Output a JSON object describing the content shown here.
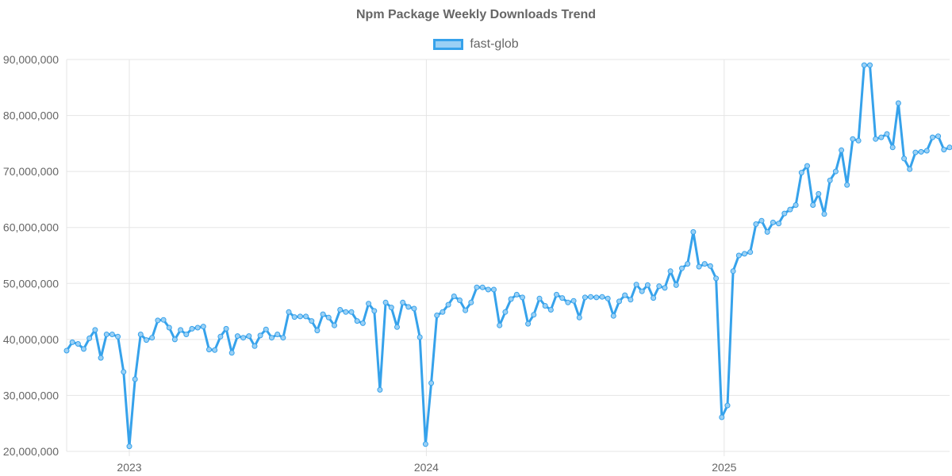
{
  "chart_data": {
    "type": "line",
    "title": "Npm Package Weekly Downloads Trend",
    "xlabel": "",
    "ylabel": "",
    "ylim": [
      20000000,
      90000000
    ],
    "y_ticks": [
      "20,000,000",
      "30,000,000",
      "40,000,000",
      "50,000,000",
      "60,000,000",
      "70,000,000",
      "80,000,000",
      "90,000,000"
    ],
    "x_tick_labels": [
      "2023",
      "2024",
      "2025"
    ],
    "x_range": [
      "2022-10-16",
      "2025-10-05"
    ],
    "grid": true,
    "legend_position": "top-center",
    "series_color": "#36A2EB",
    "series_fill": "#9AD0F5",
    "series": [
      {
        "name": "fast-glob",
        "x": [
          "2022-10-16",
          "2022-10-23",
          "2022-10-30",
          "2022-11-06",
          "2022-11-13",
          "2022-11-20",
          "2022-11-27",
          "2022-12-04",
          "2022-12-11",
          "2022-12-18",
          "2022-12-25",
          "2023-01-01",
          "2023-01-08",
          "2023-01-15",
          "2023-01-22",
          "2023-01-29",
          "2023-02-05",
          "2023-02-12",
          "2023-02-19",
          "2023-02-26",
          "2023-03-05",
          "2023-03-12",
          "2023-03-19",
          "2023-03-26",
          "2023-04-02",
          "2023-04-09",
          "2023-04-16",
          "2023-04-23",
          "2023-04-30",
          "2023-05-07",
          "2023-05-14",
          "2023-05-21",
          "2023-05-28",
          "2023-06-04",
          "2023-06-11",
          "2023-06-18",
          "2023-06-25",
          "2023-07-02",
          "2023-07-09",
          "2023-07-16",
          "2023-07-23",
          "2023-07-30",
          "2023-08-06",
          "2023-08-13",
          "2023-08-20",
          "2023-08-27",
          "2023-09-03",
          "2023-09-10",
          "2023-09-17",
          "2023-09-24",
          "2023-10-01",
          "2023-10-08",
          "2023-10-15",
          "2023-10-22",
          "2023-10-29",
          "2023-11-05",
          "2023-11-12",
          "2023-11-19",
          "2023-11-26",
          "2023-12-03",
          "2023-12-10",
          "2023-12-17",
          "2023-12-24",
          "2023-12-31",
          "2024-01-07",
          "2024-01-14",
          "2024-01-21",
          "2024-01-28",
          "2024-02-04",
          "2024-02-11",
          "2024-02-18",
          "2024-02-25",
          "2024-03-03",
          "2024-03-10",
          "2024-03-17",
          "2024-03-24",
          "2024-03-31",
          "2024-04-07",
          "2024-04-14",
          "2024-04-21",
          "2024-04-28",
          "2024-05-05",
          "2024-05-12",
          "2024-05-19",
          "2024-05-26",
          "2024-06-02",
          "2024-06-09",
          "2024-06-16",
          "2024-06-23",
          "2024-06-30",
          "2024-07-07",
          "2024-07-14",
          "2024-07-21",
          "2024-07-28",
          "2024-08-04",
          "2024-08-11",
          "2024-08-18",
          "2024-08-25",
          "2024-09-01",
          "2024-09-08",
          "2024-09-15",
          "2024-09-22",
          "2024-09-29",
          "2024-10-06",
          "2024-10-13",
          "2024-10-20",
          "2024-10-27",
          "2024-11-03",
          "2024-11-10",
          "2024-11-17",
          "2024-11-24",
          "2024-12-01",
          "2024-12-08",
          "2024-12-15",
          "2024-12-22",
          "2024-12-29",
          "2025-01-05",
          "2025-01-12",
          "2025-01-19",
          "2025-01-26",
          "2025-02-02",
          "2025-02-09",
          "2025-02-16",
          "2025-02-23",
          "2025-03-02",
          "2025-03-09",
          "2025-03-16",
          "2025-03-23",
          "2025-03-30",
          "2025-04-06",
          "2025-04-13",
          "2025-04-20",
          "2025-04-27",
          "2025-05-04",
          "2025-05-11",
          "2025-05-18",
          "2025-05-25",
          "2025-06-01",
          "2025-06-08",
          "2025-06-15",
          "2025-06-22",
          "2025-06-29",
          "2025-07-06",
          "2025-07-13",
          "2025-07-20",
          "2025-07-27",
          "2025-08-03",
          "2025-08-10",
          "2025-08-17",
          "2025-08-24",
          "2025-08-31",
          "2025-09-07",
          "2025-09-14",
          "2025-09-21",
          "2025-09-28",
          "2025-10-05"
        ],
        "values": [
          38000000,
          39500000,
          39200000,
          38300000,
          40200000,
          41700000,
          36700000,
          40900000,
          40900000,
          40500000,
          34200000,
          20900000,
          32900000,
          40900000,
          39900000,
          40300000,
          43400000,
          43500000,
          42100000,
          40000000,
          41700000,
          40900000,
          41900000,
          42100000,
          42300000,
          38200000,
          38100000,
          40500000,
          41900000,
          37600000,
          40600000,
          40300000,
          40600000,
          38800000,
          40700000,
          41800000,
          40300000,
          40900000,
          40300000,
          44900000,
          44000000,
          44100000,
          44100000,
          43300000,
          41600000,
          44500000,
          43900000,
          42500000,
          45300000,
          44900000,
          44900000,
          43300000,
          42900000,
          46400000,
          45100000,
          31000000,
          46600000,
          45700000,
          42200000,
          46600000,
          45800000,
          45500000,
          40400000,
          21300000,
          32200000,
          44300000,
          44900000,
          46200000,
          47700000,
          47000000,
          45200000,
          46600000,
          49300000,
          49300000,
          48900000,
          48900000,
          42500000,
          44900000,
          47200000,
          48000000,
          47500000,
          42800000,
          44400000,
          47300000,
          46000000,
          45300000,
          48000000,
          47400000,
          46600000,
          46900000,
          43900000,
          47500000,
          47600000,
          47500000,
          47600000,
          47300000,
          44200000,
          46800000,
          47900000,
          47100000,
          49800000,
          48600000,
          49700000,
          47400000,
          49500000,
          49200000,
          52200000,
          49700000,
          52700000,
          53500000,
          59200000,
          53000000,
          53500000,
          53100000,
          50900000,
          26100000,
          28200000,
          52200000,
          55000000,
          55300000,
          55600000,
          60600000,
          61200000,
          59200000,
          60900000,
          60700000,
          62500000,
          63200000,
          64000000,
          69800000,
          71000000,
          64000000,
          66000000,
          62400000,
          68400000,
          70000000,
          73800000,
          67600000,
          75800000,
          75500000,
          89000000,
          89000000,
          75800000,
          76100000,
          76700000,
          74300000,
          82200000,
          72300000,
          70400000,
          73400000,
          73500000,
          73700000,
          76100000,
          76300000,
          73900000,
          74300000
        ]
      }
    ]
  }
}
